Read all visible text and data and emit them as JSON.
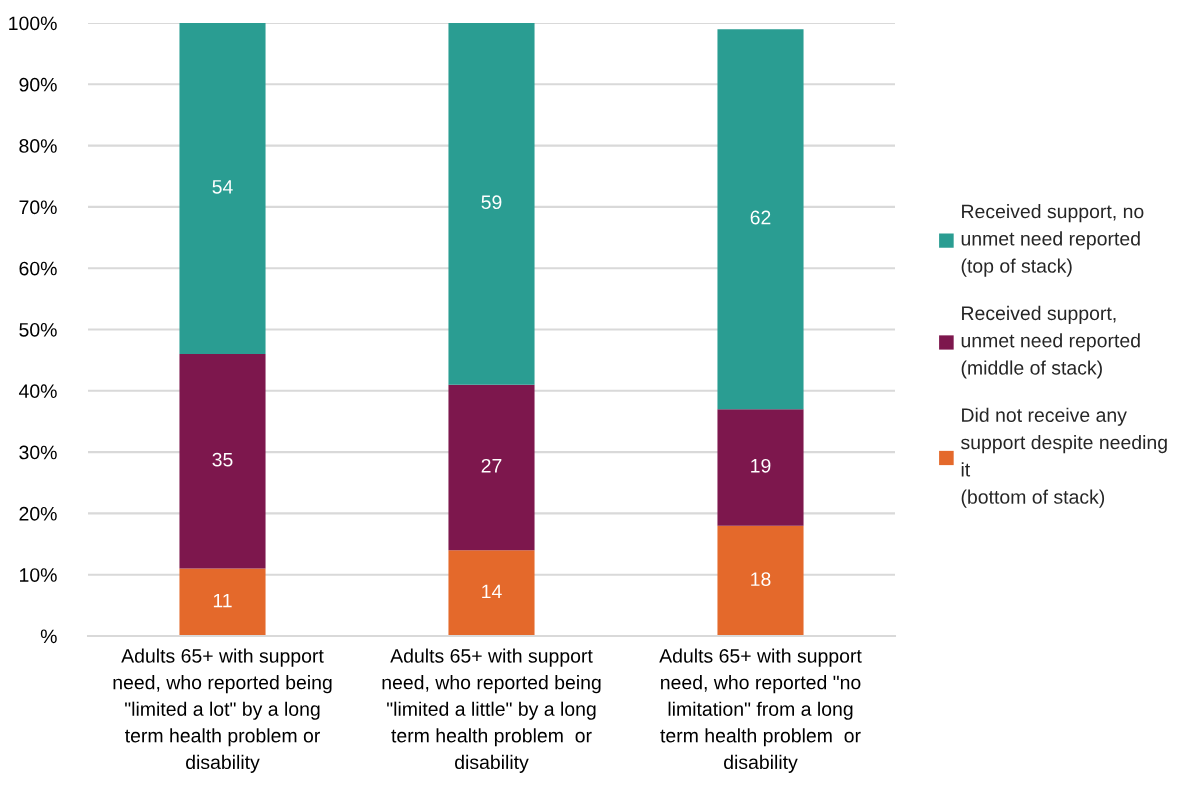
{
  "chart_data": {
    "type": "bar",
    "stacked": true,
    "categories": [
      "Adults 65+ with support\nneed, who reported being\n\"limited a lot\" by a long\nterm health problem or\ndisability",
      "Adults 65+ with support\nneed, who reported being\n\"limited a little\" by a long\nterm health problem  or\ndisability",
      "Adults 65+ with support\nneed, who reported \"no\nlimitation\" from a long\nterm health problem  or\ndisability"
    ],
    "series": [
      {
        "name": "Did not receive any\nsupport despite needing\nit\n(bottom of stack)",
        "color": "#e4692b",
        "values": [
          11,
          14,
          18
        ]
      },
      {
        "name": "Received support,\nunmet need reported\n(middle of stack)",
        "color": "#7d174d",
        "values": [
          35,
          27,
          19
        ]
      },
      {
        "name": "Received support, no\nunmet need reported\n(top of stack)",
        "color": "#2a9d92",
        "values": [
          54,
          59,
          62
        ]
      }
    ],
    "ylim": [
      0,
      100
    ],
    "yticks": [
      {
        "value": 0,
        "label": "%"
      },
      {
        "value": 10,
        "label": "10%"
      },
      {
        "value": 20,
        "label": "20%"
      },
      {
        "value": 30,
        "label": "30%"
      },
      {
        "value": 40,
        "label": "40%"
      },
      {
        "value": 50,
        "label": "50%"
      },
      {
        "value": 60,
        "label": "60%"
      },
      {
        "value": 70,
        "label": "70%"
      },
      {
        "value": 80,
        "label": "80%"
      },
      {
        "value": 90,
        "label": "90%"
      },
      {
        "value": 100,
        "label": "100%"
      }
    ],
    "grid": "y",
    "legend": "right",
    "data_labels": true
  }
}
